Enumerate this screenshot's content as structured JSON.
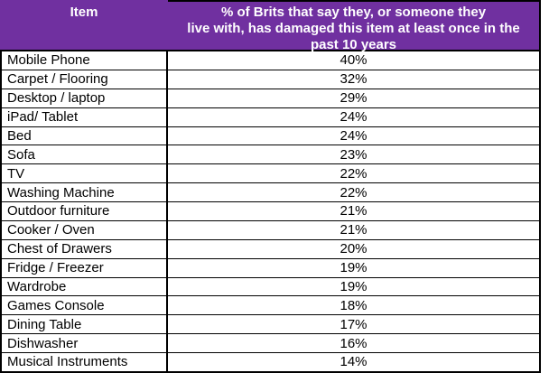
{
  "table": {
    "header": {
      "item_label": "Item",
      "pct_label_lines": [
        "% of Brits that say they, or someone they",
        "live with, has damaged this item at least once in the",
        "past 10 years"
      ]
    },
    "rows": [
      {
        "item": "Mobile Phone",
        "value": "40%"
      },
      {
        "item": "Carpet / Flooring",
        "value": "32%"
      },
      {
        "item": "Desktop / laptop",
        "value": "29%"
      },
      {
        "item": "iPad/ Tablet",
        "value": "24%"
      },
      {
        "item": "Bed",
        "value": "24%"
      },
      {
        "item": "Sofa",
        "value": "23%"
      },
      {
        "item": "TV",
        "value": "22%"
      },
      {
        "item": "Washing Machine",
        "value": "22%"
      },
      {
        "item": "Outdoor furniture",
        "value": "21%"
      },
      {
        "item": "Cooker / Oven",
        "value": "21%"
      },
      {
        "item": "Chest of Drawers",
        "value": "20%"
      },
      {
        "item": "Fridge / Freezer",
        "value": "19%"
      },
      {
        "item": "Wardrobe",
        "value": "19%"
      },
      {
        "item": "Games Console",
        "value": "18%"
      },
      {
        "item": "Dining Table",
        "value": "17%"
      },
      {
        "item": "Dishwasher",
        "value": "16%"
      },
      {
        "item": "Musical Instruments",
        "value": "14%"
      }
    ]
  },
  "colors": {
    "header_bg": "#7030A0",
    "header_text": "#FFFFFF",
    "border": "#000000",
    "body_text": "#000000",
    "body_bg": "#FFFFFF"
  },
  "chart_data": {
    "type": "table",
    "title": "",
    "columns": [
      "Item",
      "% of Brits that say they, or someone they live with, has damaged this item at least once in the past 10 years"
    ],
    "categories": [
      "Mobile Phone",
      "Carpet / Flooring",
      "Desktop / laptop",
      "iPad/ Tablet",
      "Bed",
      "Sofa",
      "TV",
      "Washing Machine",
      "Outdoor furniture",
      "Cooker / Oven",
      "Chest of Drawers",
      "Fridge / Freezer",
      "Wardrobe",
      "Games Console",
      "Dining Table",
      "Dishwasher",
      "Musical Instruments"
    ],
    "values": [
      40,
      32,
      29,
      24,
      24,
      23,
      22,
      22,
      21,
      21,
      20,
      19,
      19,
      18,
      17,
      16,
      14
    ],
    "value_unit": "%"
  }
}
